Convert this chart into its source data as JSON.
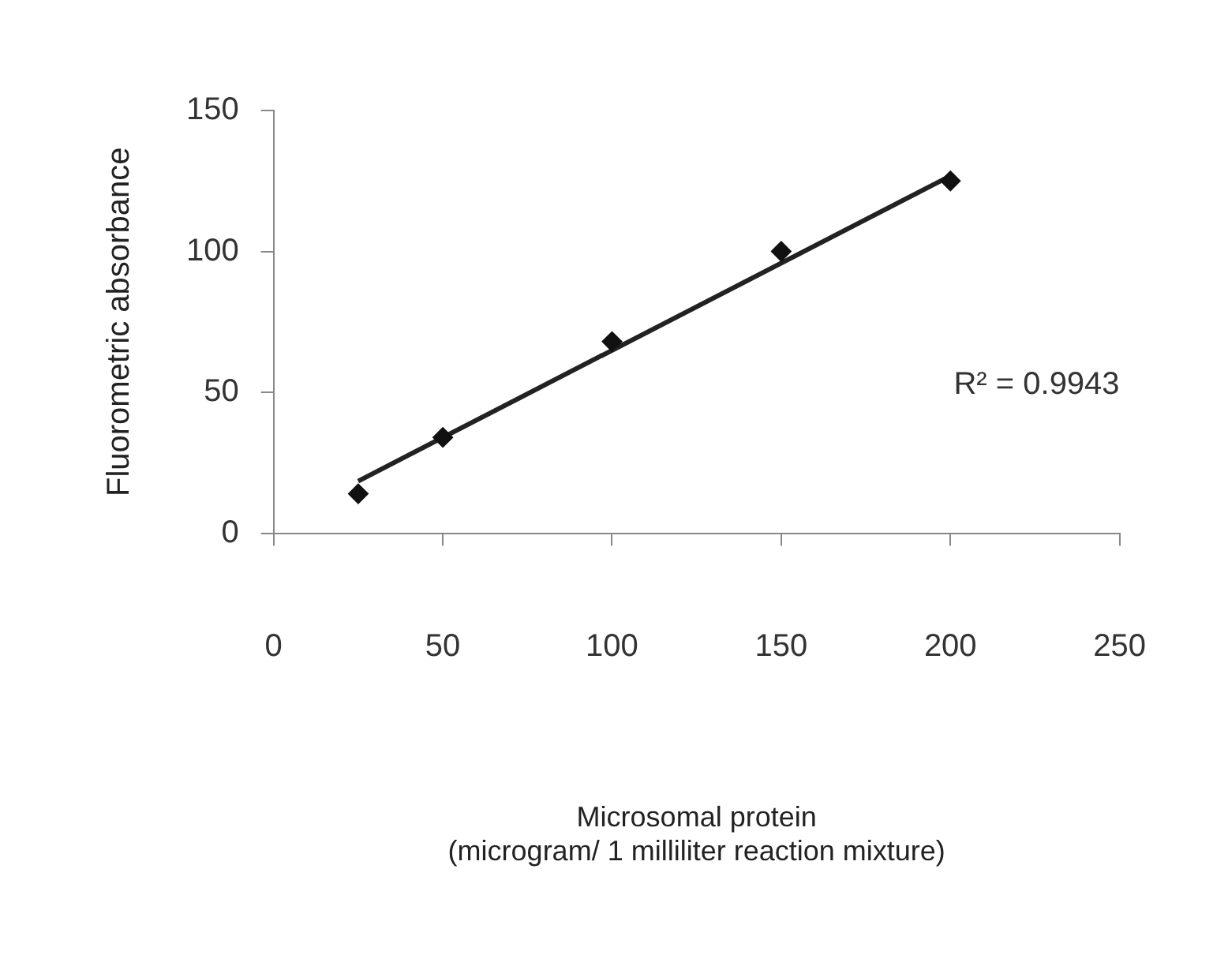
{
  "chart_data": {
    "type": "scatter",
    "xlabel": "Microsomal protein\n(microgram/ 1 milliliter reaction mixture)",
    "ylabel": "Fluorometric absorbance",
    "xlim": [
      0,
      250
    ],
    "xticks": [
      0,
      50,
      100,
      150,
      200,
      250
    ],
    "ylim": [
      0,
      150
    ],
    "yticks": [
      0,
      50,
      100,
      150
    ],
    "grid": false,
    "legend": false,
    "marker": "diamond",
    "series": [
      {
        "type": "scatter",
        "color": "#111111",
        "x": [
          25,
          50,
          100,
          150,
          200
        ],
        "values": [
          14,
          34,
          68,
          100,
          125
        ]
      },
      {
        "type": "line",
        "color": "#222222",
        "marker": "none",
        "line_style": "solid",
        "x": [
          25,
          200
        ],
        "values": [
          18.5,
          126.8
        ]
      }
    ],
    "annotations": [
      "R² = 0.9943"
    ]
  }
}
